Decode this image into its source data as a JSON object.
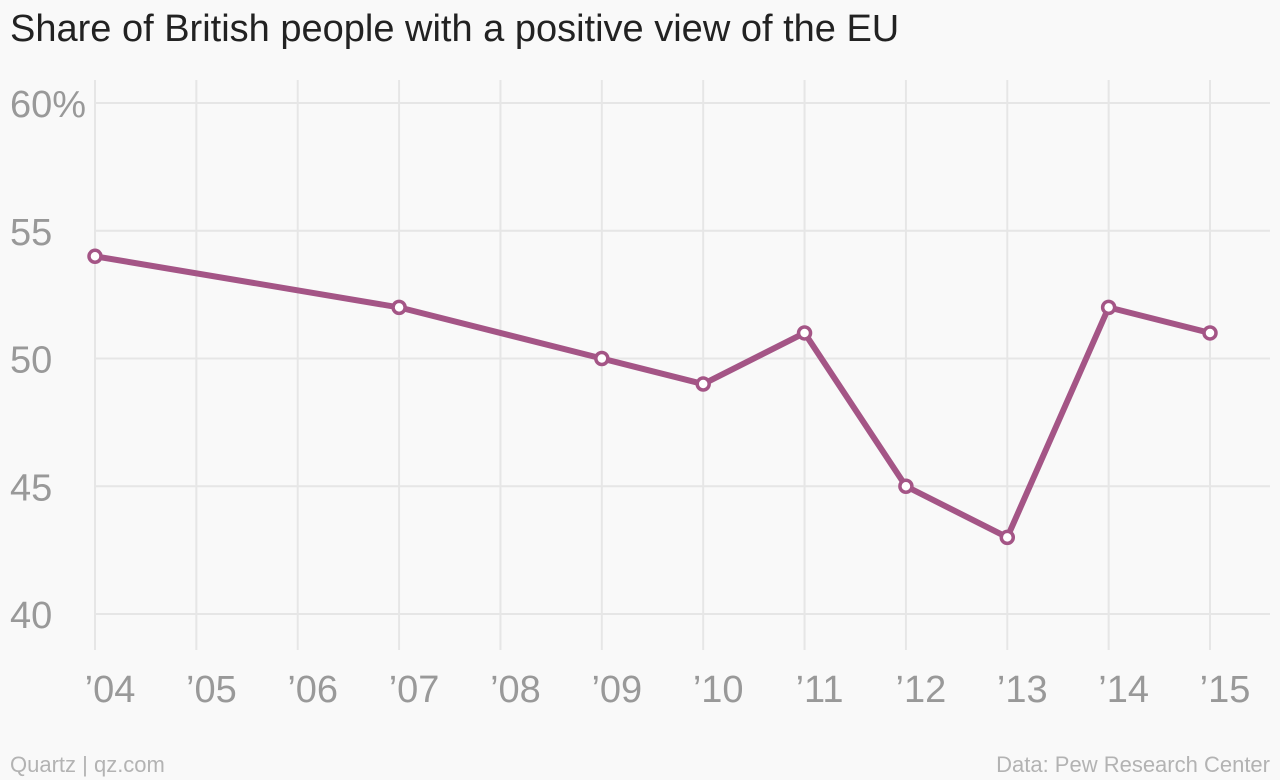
{
  "chart_data": {
    "type": "line",
    "title": "Share of British people with a positive view of the EU",
    "x": [
      "’04",
      "’05",
      "’06",
      "’07",
      "’08",
      "’09",
      "’10",
      "’11",
      "’12",
      "’13",
      "’14",
      "’15"
    ],
    "x_years": [
      2004,
      2005,
      2006,
      2007,
      2008,
      2009,
      2010,
      2011,
      2012,
      2013,
      2014,
      2015
    ],
    "series": [
      {
        "points": [
          {
            "x": 2004,
            "y": 54
          },
          {
            "x": 2007,
            "y": 52
          },
          {
            "x": 2009,
            "y": 50
          },
          {
            "x": 2010,
            "y": 49
          },
          {
            "x": 2011,
            "y": 51
          },
          {
            "x": 2012,
            "y": 45
          },
          {
            "x": 2013,
            "y": 43
          },
          {
            "x": 2014,
            "y": 52
          },
          {
            "x": 2015,
            "y": 51
          }
        ],
        "color": "#a45586"
      }
    ],
    "yticks": [
      {
        "value": 60,
        "label": "60%"
      },
      {
        "value": 55,
        "label": "55"
      },
      {
        "value": 50,
        "label": "50"
      },
      {
        "value": 45,
        "label": "45"
      },
      {
        "value": 40,
        "label": "40"
      }
    ],
    "ylim": [
      40,
      60
    ],
    "xlim": [
      2004,
      2015
    ],
    "grid": true,
    "legend": "none"
  },
  "footer": {
    "source_left": "Quartz | qz.com",
    "source_right": "Data: Pew Research Center"
  }
}
